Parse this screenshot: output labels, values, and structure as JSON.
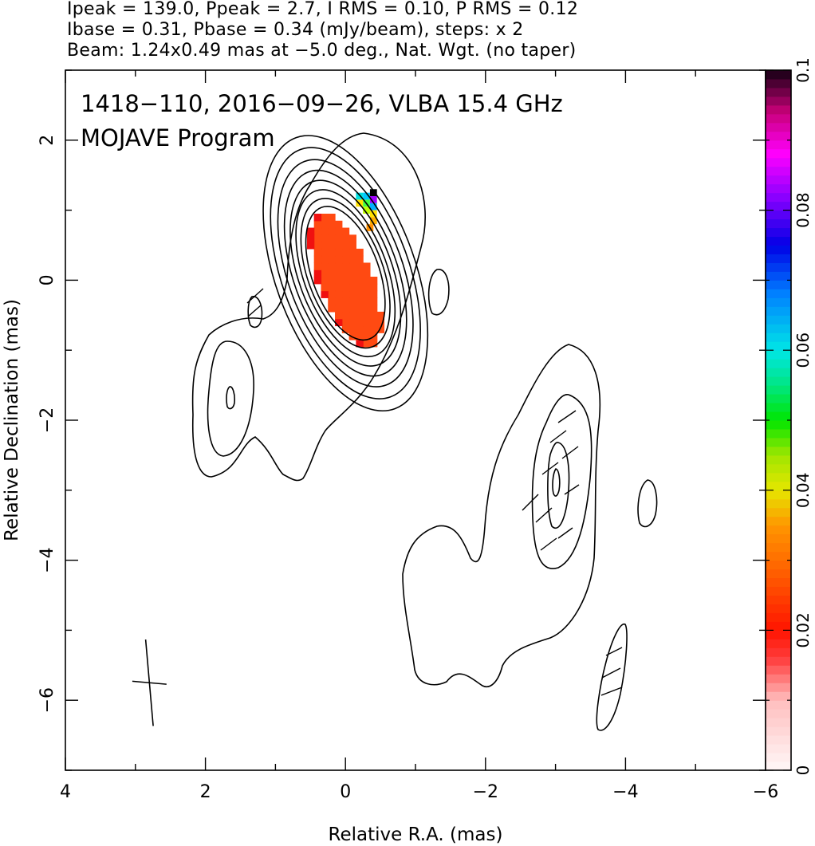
{
  "header": {
    "line1": "Ipeak = 139.0, Ppeak = 2.7, I RMS = 0.10, P RMS = 0.12",
    "line2": "Ibase = 0.31, Pbase = 0.34 (mJy/beam), steps: x 2",
    "line3": "Beam: 1.24x0.49 mas at −5.0 deg., Nat. Wgt. (no taper)"
  },
  "chart_data": {
    "type": "heatmap",
    "annotation_line1": "1418−110, 2016−09−26, VLBA 15.4 GHz",
    "annotation_line2": "MOJAVE Program",
    "xlabel": "Relative R.A. (mas)",
    "ylabel": "Relative Declination (mas)",
    "xlim": [
      4,
      -6
    ],
    "ylim": [
      -7,
      3
    ],
    "x_ticks": [
      {
        "value": 4,
        "label": "4"
      },
      {
        "value": 2,
        "label": "2"
      },
      {
        "value": 0,
        "label": "0"
      },
      {
        "value": -2,
        "label": "−2"
      },
      {
        "value": -4,
        "label": "−4"
      },
      {
        "value": -6,
        "label": "−6"
      }
    ],
    "y_ticks": [
      {
        "value": 2,
        "label": "2"
      },
      {
        "value": 0,
        "label": "0"
      },
      {
        "value": -2,
        "label": "−2"
      },
      {
        "value": -4,
        "label": "−4"
      },
      {
        "value": -6,
        "label": "−6"
      }
    ],
    "colorbar": {
      "range": [
        0,
        0.1
      ],
      "ticks": [
        {
          "value": 0,
          "label": "0"
        },
        {
          "value": 0.02,
          "label": "0.02"
        },
        {
          "value": 0.04,
          "label": "0.04"
        },
        {
          "value": 0.06,
          "label": "0.06"
        },
        {
          "value": 0.08,
          "label": "0.08"
        },
        {
          "value": 0.1,
          "label": "0.1"
        }
      ]
    },
    "contour_base_mJy_per_beam": 0.31,
    "contour_step_factor": 2,
    "beam": {
      "major_mas": 1.24,
      "minor_mas": 0.49,
      "pa_deg": -5.0,
      "center": [
        2.8,
        -5.75
      ]
    },
    "core": {
      "center": [
        0.0,
        0.1
      ],
      "pa_deg": -20,
      "contour_semi_axes": [
        [
          0.48,
          1.0
        ],
        [
          0.54,
          1.12
        ],
        [
          0.6,
          1.25
        ],
        [
          0.67,
          1.39
        ],
        [
          0.74,
          1.54
        ],
        [
          0.82,
          1.7
        ],
        [
          0.91,
          1.88
        ],
        [
          1.0,
          2.06
        ]
      ]
    },
    "polarization_region": {
      "center": [
        0.0,
        0.0
      ],
      "semi_axes": [
        0.38,
        1.05
      ],
      "fraction": 0.022
    }
  },
  "colors": {
    "contour": "#000000",
    "pol_main": "#ff4a12",
    "pol_edge_red": "#f01010"
  }
}
